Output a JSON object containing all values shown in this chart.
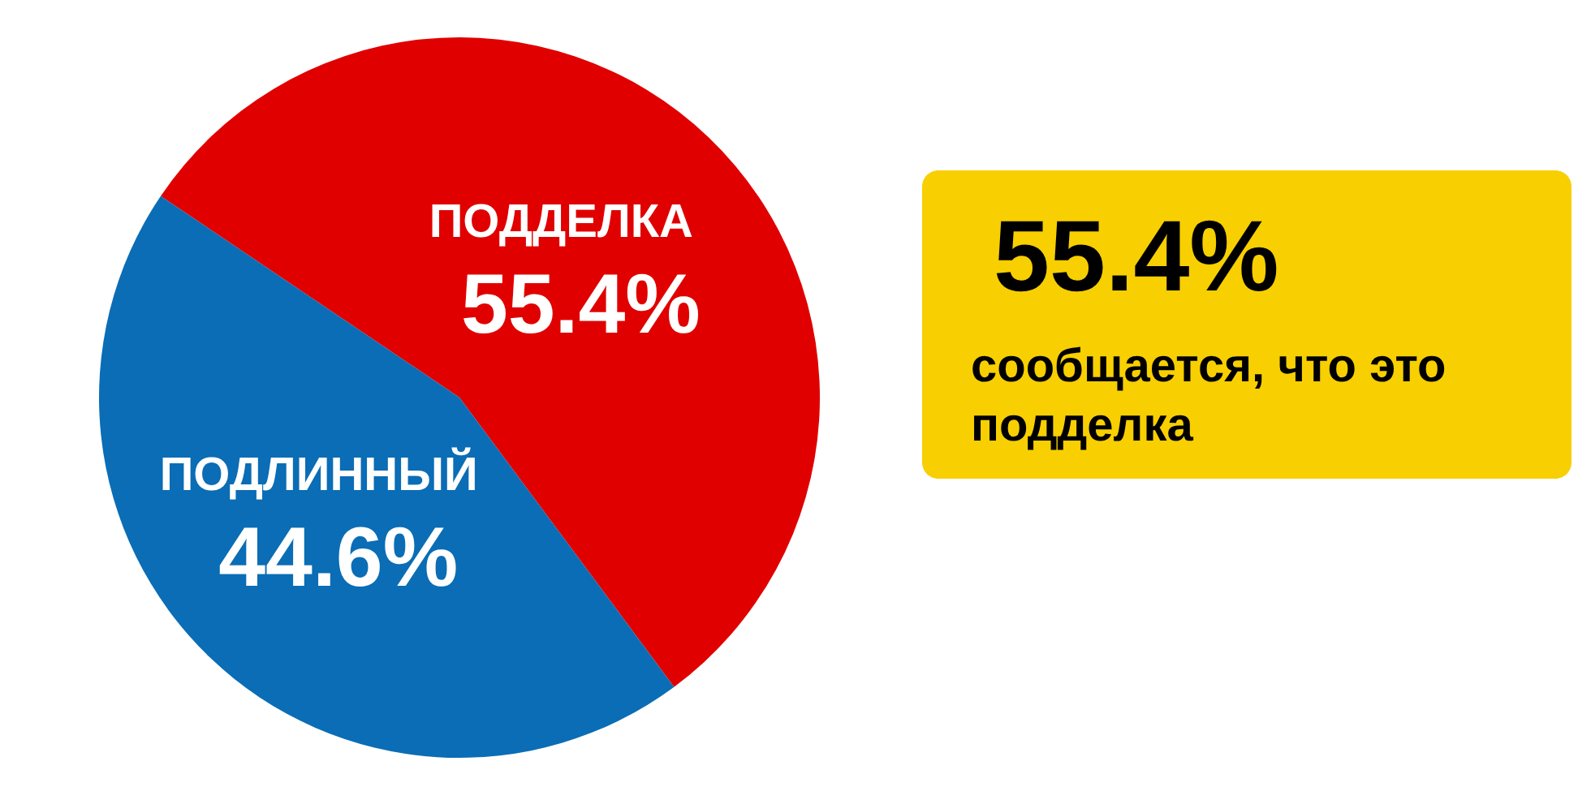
{
  "chart_data": {
    "type": "pie",
    "categories": [
      "ПОДДЕЛКА",
      "ПОДЛИННЫЙ"
    ],
    "values": [
      55.4,
      44.6
    ],
    "colors": [
      "#e00000",
      "#0a6db5"
    ],
    "value_labels": [
      "55.4%",
      "44.6%"
    ],
    "annotations": [
      "55.4%",
      "сообщается, что это подделка"
    ]
  }
}
